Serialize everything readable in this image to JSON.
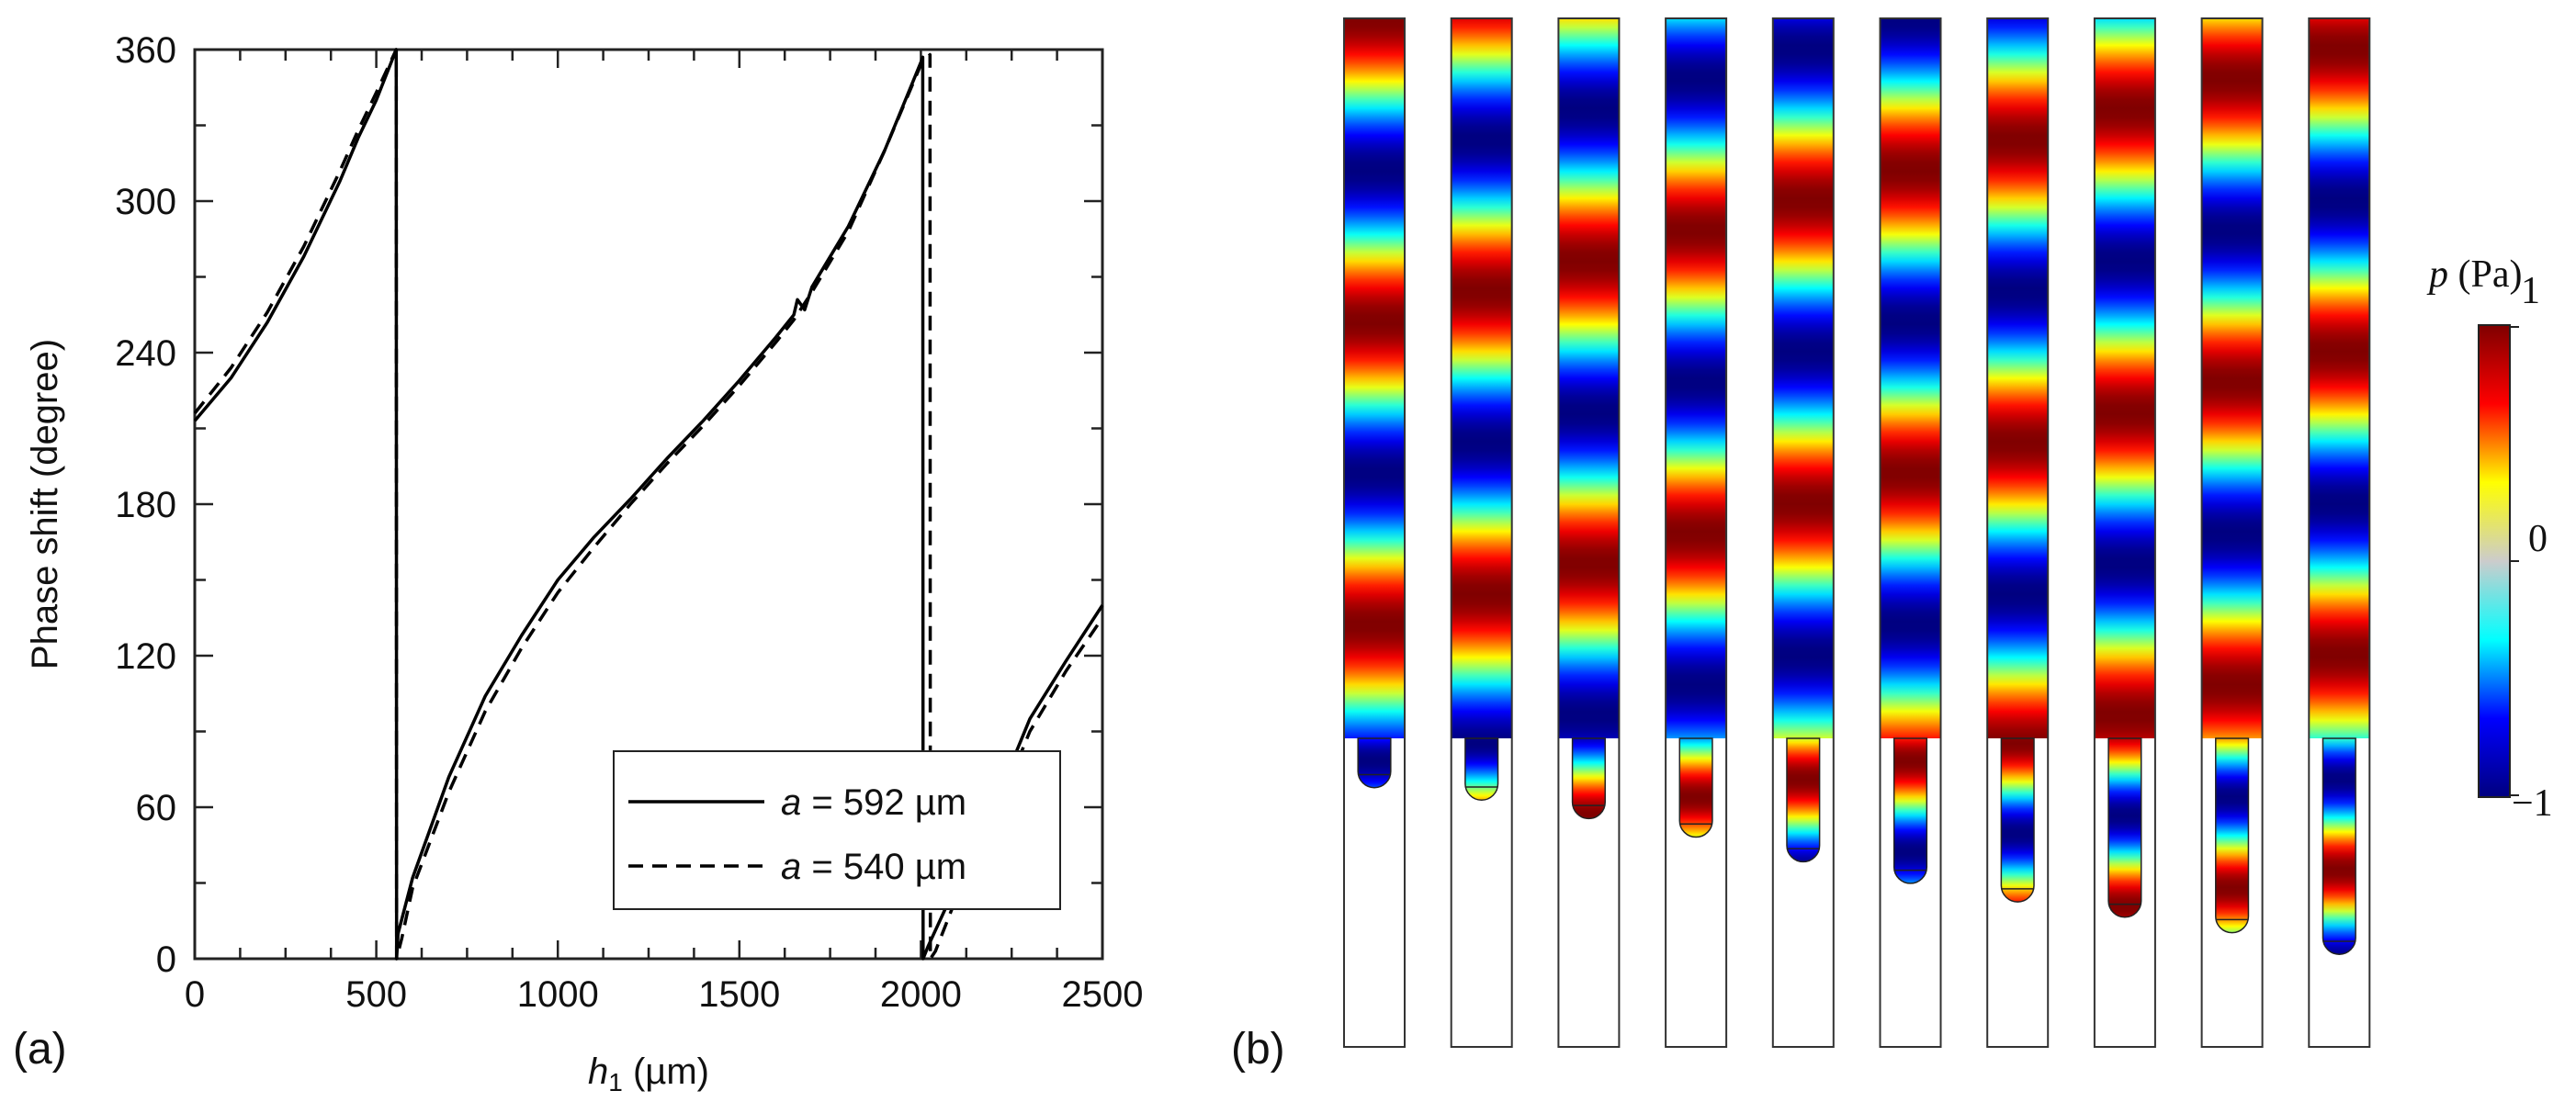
{
  "panel_a_label": "(a)",
  "panel_b_label": "(b)",
  "chart_data": {
    "type": "line",
    "ylabel": "Phase shift (degree)",
    "xlabel": {
      "var": "h",
      "sub": "1",
      "unit": " (µm)"
    },
    "xlim": [
      0,
      2500
    ],
    "ylim": [
      0,
      360
    ],
    "xticks": [
      0,
      500,
      1000,
      1500,
      2000,
      2500
    ],
    "yticks": [
      0,
      60,
      120,
      180,
      240,
      300,
      360
    ],
    "xtick_labels": [
      "0",
      "500",
      "1000",
      "1500",
      "2000",
      "2500"
    ],
    "ytick_labels": [
      "0",
      "60",
      "120",
      "180",
      "240",
      "300",
      "360"
    ],
    "grid": false,
    "legend_position": "bottom-right",
    "series": [
      {
        "name": "a = 592 µm",
        "label_var": "a",
        "label_rest": " = 592 µm",
        "style": "solid",
        "x": [
          0,
          100,
          200,
          300,
          400,
          450,
          500,
          555,
          556,
          560,
          600,
          700,
          800,
          900,
          1000,
          1100,
          1200,
          1300,
          1400,
          1500,
          1600,
          1650,
          1660,
          1680,
          1700,
          1800,
          1900,
          2000,
          2005,
          2006,
          2020,
          2100,
          2200,
          2300,
          2400,
          2500
        ],
        "y": [
          213,
          230,
          252,
          278,
          308,
          325,
          340,
          360,
          0,
          10,
          32,
          72,
          104,
          128,
          150,
          167,
          182,
          198,
          213,
          229,
          246,
          255,
          261,
          257,
          266,
          290,
          320,
          355,
          357,
          0,
          5,
          30,
          60,
          95,
          118,
          140
        ]
      },
      {
        "name": "a = 540 µm",
        "label_var": "a",
        "label_rest": " = 540 µm",
        "style": "dashed",
        "x": [
          0,
          100,
          200,
          300,
          400,
          450,
          500,
          555,
          556,
          570,
          600,
          700,
          800,
          900,
          1000,
          1100,
          1200,
          1300,
          1400,
          1500,
          1600,
          1650,
          1700,
          1800,
          1900,
          2000,
          2025,
          2026,
          2040,
          2100,
          2200,
          2300,
          2400,
          2500
        ],
        "y": [
          216,
          234,
          256,
          282,
          312,
          328,
          343,
          360,
          0,
          8,
          28,
          66,
          98,
          123,
          145,
          163,
          180,
          196,
          211,
          227,
          244,
          253,
          264,
          288,
          320,
          354,
          358,
          0,
          3,
          25,
          55,
          90,
          114,
          135
        ]
      }
    ]
  },
  "panel_b": {
    "colorbar_label_var": "p",
    "colorbar_label_unit": " (Pa)",
    "colorbar_ticks": [
      "1",
      "0",
      "−1"
    ],
    "colorbar_range": [
      -1,
      1
    ],
    "colorbar_stops": [
      "#00007f",
      "#0000ff",
      "#00ffff",
      "#cccccc",
      "#ffff00",
      "#ff0000",
      "#7f0000"
    ],
    "tube_count": 10,
    "phase_shift_per_tube_deg": [
      0,
      36,
      72,
      108,
      144,
      180,
      216,
      252,
      288,
      324
    ],
    "droplet_level_per_tube": [
      0.16,
      0.2,
      0.26,
      0.32,
      0.4,
      0.47,
      0.53,
      0.58,
      0.63,
      0.7
    ]
  }
}
